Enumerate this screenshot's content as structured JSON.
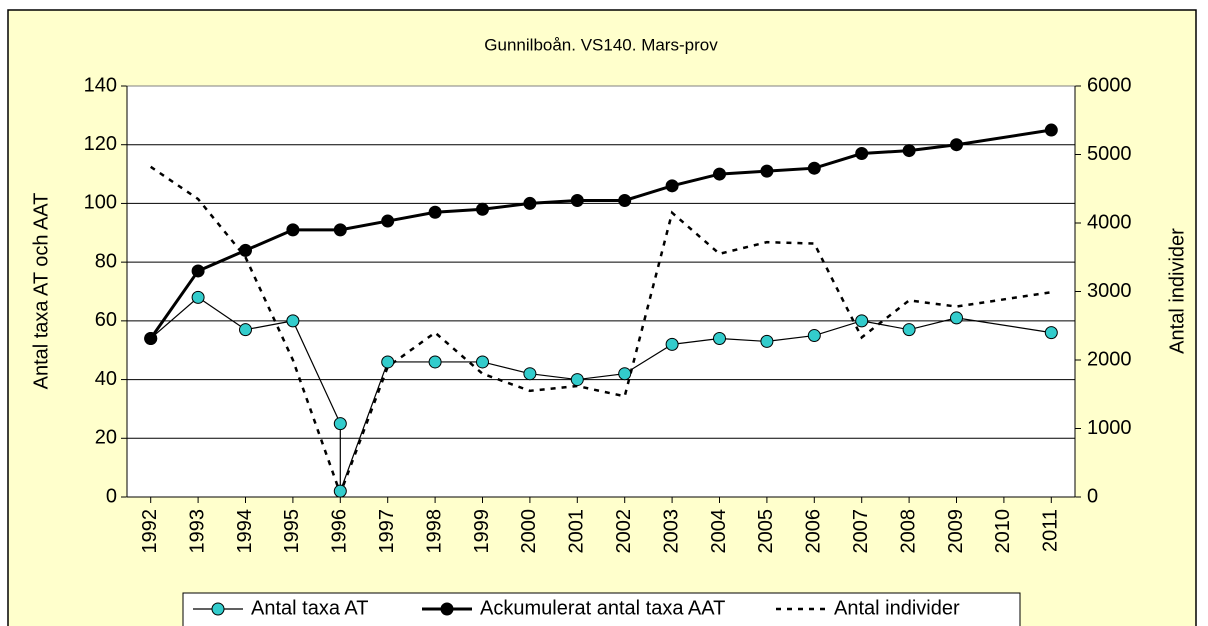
{
  "chart_data": {
    "type": "line",
    "title": "Gunnilboån. VS140. Mars-prov",
    "ylabel": "Antal taxa AT och AAT",
    "y2label": "Antal individer",
    "xlim": [
      1991.5,
      2011.5
    ],
    "xticks": [
      1992,
      1993,
      1994,
      1995,
      1996,
      1997,
      1998,
      1999,
      2000,
      2001,
      2002,
      2003,
      2004,
      2005,
      2006,
      2007,
      2008,
      2009,
      2010,
      2011
    ],
    "ylim": [
      0,
      140
    ],
    "yticks": [
      0,
      20,
      40,
      60,
      80,
      100,
      120,
      140
    ],
    "y2lim": [
      0,
      6000
    ],
    "y2ticks": [
      0,
      1000,
      2000,
      3000,
      4000,
      5000,
      6000
    ],
    "grid": true,
    "legend": "bottom",
    "series": [
      {
        "name": "Antal taxa AT",
        "color": "#33cccc",
        "style": "marker-thin",
        "x": [
          1992,
          1993,
          1994,
          1995,
          1996,
          1996,
          1997,
          1998,
          1999,
          2000,
          2001,
          2002,
          2003,
          2004,
          2005,
          2006,
          2007,
          2008,
          2009,
          2011
        ],
        "values": [
          54,
          68,
          57,
          60,
          25,
          2,
          46,
          46,
          46,
          42,
          40,
          42,
          52,
          54,
          53,
          55,
          60,
          57,
          61,
          56
        ]
      },
      {
        "name": "Ackumulerat antal taxa AAT",
        "color": "#000000",
        "style": "marker-thick",
        "x": [
          1992,
          1993,
          1994,
          1995,
          1996,
          1997,
          1998,
          1999,
          2000,
          2001,
          2002,
          2003,
          2004,
          2005,
          2006,
          2007,
          2008,
          2009,
          2011
        ],
        "values": [
          54,
          77,
          84,
          91,
          91,
          94,
          97,
          98,
          100,
          101,
          101,
          106,
          110,
          111,
          112,
          117,
          118,
          120,
          125
        ]
      },
      {
        "name": "Antal individer",
        "color": "#000000",
        "style": "dotted",
        "axis": "y2",
        "x": [
          1992,
          1993,
          1994,
          1995,
          1996,
          1997,
          1998,
          1999,
          2000,
          2001,
          2002,
          2003,
          2004,
          2005,
          2006,
          2007,
          2008,
          2009,
          2011
        ],
        "values": [
          4820,
          4350,
          3500,
          2000,
          50,
          1900,
          2400,
          1800,
          1550,
          1620,
          1470,
          4150,
          3550,
          3720,
          3700,
          2330,
          2870,
          2780,
          2990
        ]
      }
    ]
  }
}
